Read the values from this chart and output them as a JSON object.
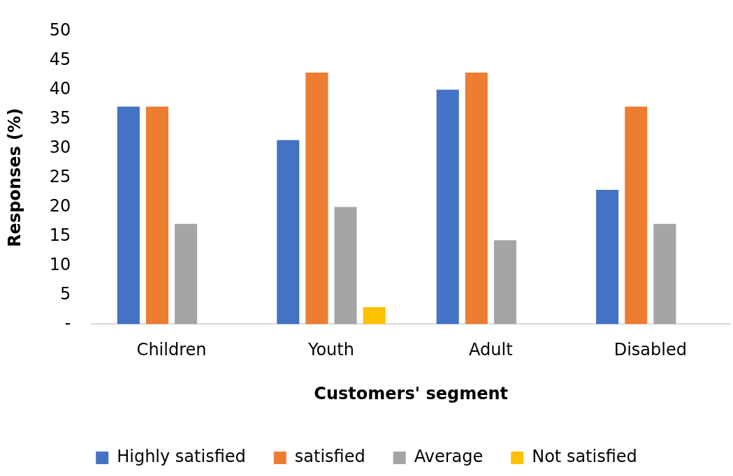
{
  "chart_data": {
    "type": "bar",
    "xlabel": "Customers' segment",
    "ylabel": "Responses (%)",
    "categories": [
      "Children",
      "Youth",
      "Adult",
      "Disabled"
    ],
    "series": [
      {
        "name": "Highly satisfied",
        "color": "#4472c4",
        "values": [
          37.1,
          31.4,
          40.0,
          22.9
        ]
      },
      {
        "name": "satisfied",
        "color": "#ed7d31",
        "values": [
          37.1,
          42.9,
          42.9,
          37.1
        ]
      },
      {
        "name": "Average",
        "color": "#a5a5a5",
        "values": [
          17.1,
          20.0,
          14.3,
          17.1
        ]
      },
      {
        "name": "Not satisfied",
        "color": "#ffc000",
        "values": [
          0,
          2.9,
          0,
          0
        ]
      }
    ],
    "ylim": [
      0,
      50
    ],
    "yticks": [
      {
        "value": 0,
        "label": "-"
      },
      5,
      10,
      15,
      20,
      25,
      30,
      35,
      40,
      45,
      50
    ],
    "grid": false,
    "legend": "bottom"
  }
}
